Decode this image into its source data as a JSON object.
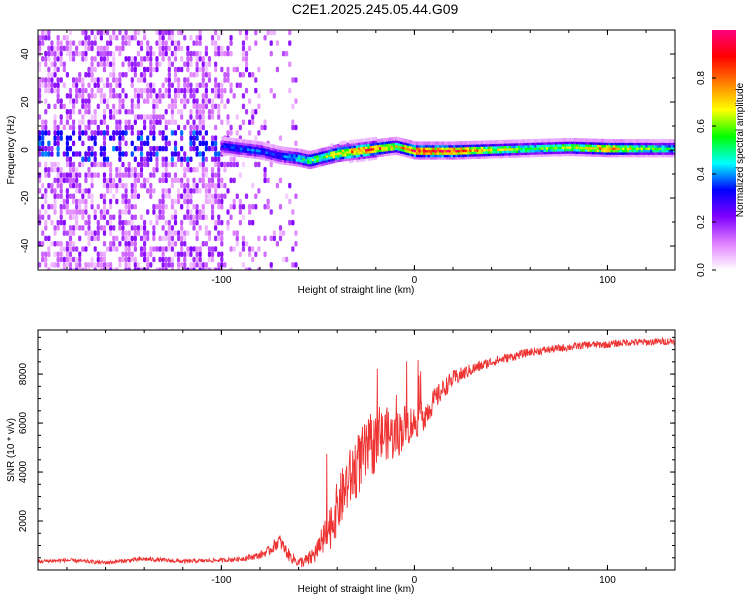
{
  "figure_title": "C2E1.2025.245.05.44.G09",
  "chart_data": [
    {
      "type": "heatmap",
      "title": "C2E1.2025.245.05.44.G09",
      "xlabel": "Height of straight line (km)",
      "ylabel": "Frequency (Hz)",
      "xlim": [
        -195,
        135
      ],
      "ylim": [
        -50,
        50
      ],
      "x_ticks": [
        -100,
        0,
        100
      ],
      "x_tick_labels": [
        "-100",
        "0",
        "100"
      ],
      "y_ticks": [
        -40,
        -20,
        0,
        20,
        40
      ],
      "y_tick_labels": [
        "-40",
        "-20",
        "0",
        "20",
        "40"
      ],
      "colorbar": {
        "label": "Normalized spectral amplitude",
        "range": [
          0,
          1
        ],
        "ticks": [
          0,
          0.2,
          0.4,
          0.6,
          0.8
        ],
        "tick_labels": [
          "0.0",
          "0.2",
          "0.4",
          "0.6",
          "0.8"
        ],
        "colormap": [
          "#ffffff",
          "#e080ff",
          "#8000ff",
          "#0000ff",
          "#00ffff",
          "#00ff00",
          "#ffff00",
          "#ff8000",
          "#ff0000",
          "#ff0080"
        ]
      },
      "ridge": {
        "x": [
          -100,
          -90,
          -80,
          -70,
          -60,
          -55,
          -50,
          -40,
          -30,
          -20,
          -10,
          0,
          20,
          40,
          60,
          80,
          100,
          120,
          135
        ],
        "frequency": [
          2,
          1,
          0,
          -2,
          -3,
          -4,
          -3,
          -1,
          0,
          1,
          2,
          0,
          0,
          0.5,
          1,
          1.5,
          1,
          1,
          1
        ],
        "amplitude": [
          0.35,
          0.4,
          0.38,
          0.35,
          0.5,
          0.6,
          0.6,
          0.75,
          0.85,
          0.9,
          0.7,
          0.95,
          0.95,
          0.7,
          0.6,
          0.65,
          0.85,
          0.6,
          0.55
        ]
      }
    },
    {
      "type": "line",
      "xlabel": "Height of straight line (km)",
      "ylabel": "SNR (10 * v/v)",
      "xlim": [
        -195,
        135
      ],
      "ylim": [
        0,
        9800
      ],
      "x_ticks": [
        -100,
        0,
        100
      ],
      "x_tick_labels": [
        "-100",
        "0",
        "100"
      ],
      "y_ticks": [
        2000,
        4000,
        6000,
        8000
      ],
      "y_tick_labels": [
        "2000",
        "4000",
        "6000",
        "8000"
      ],
      "color": "#ee3333",
      "series": [
        {
          "name": "SNR",
          "x": [
            -195,
            -180,
            -160,
            -140,
            -120,
            -100,
            -90,
            -80,
            -75,
            -70,
            -65,
            -60,
            -55,
            -50,
            -45,
            -40,
            -35,
            -30,
            -25,
            -20,
            -15,
            -10,
            -5,
            0,
            5,
            10,
            15,
            20,
            30,
            40,
            50,
            60,
            70,
            80,
            90,
            100,
            110,
            120,
            135
          ],
          "y": [
            350,
            400,
            300,
            450,
            350,
            400,
            450,
            600,
            800,
            1200,
            600,
            300,
            400,
            800,
            1500,
            2500,
            3500,
            4200,
            4800,
            5200,
            5600,
            5400,
            5900,
            6000,
            6300,
            6900,
            7400,
            7800,
            8200,
            8500,
            8700,
            8900,
            9000,
            9100,
            9200,
            9200,
            9300,
            9300,
            9350
          ],
          "noise": [
            80,
            80,
            80,
            90,
            80,
            80,
            100,
            150,
            200,
            300,
            250,
            200,
            300,
            500,
            900,
            1100,
            1200,
            1300,
            1300,
            1200,
            1100,
            1000,
            900,
            700,
            600,
            500,
            400,
            350,
            250,
            200,
            180,
            170,
            160,
            160,
            150,
            150,
            150,
            150,
            150
          ]
        }
      ]
    }
  ]
}
